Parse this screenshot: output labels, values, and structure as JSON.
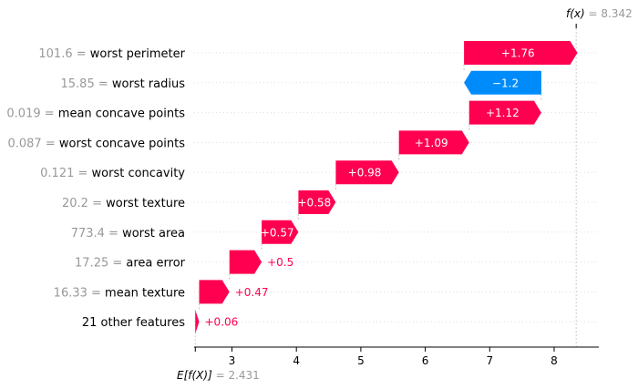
{
  "chart_data": {
    "type": "waterfall",
    "base_value": 2.431,
    "base_label": "E[f(X)]",
    "output_value": 8.342,
    "output_label": "f(x)",
    "xlim": [
      2.42,
      9.0
    ],
    "xticks": [
      3,
      4,
      5,
      6,
      7,
      8
    ],
    "features": [
      {
        "value": "101.6",
        "name": "worst perimeter",
        "shap": 1.76,
        "label": "+1.76"
      },
      {
        "value": "15.85",
        "name": "worst radius",
        "shap": -1.2,
        "label": "−1.2"
      },
      {
        "value": "0.019",
        "name": "mean concave points",
        "shap": 1.12,
        "label": "+1.12"
      },
      {
        "value": "0.087",
        "name": "worst concave points",
        "shap": 1.09,
        "label": "+1.09"
      },
      {
        "value": "0.121",
        "name": "worst concavity",
        "shap": 0.98,
        "label": "+0.98"
      },
      {
        "value": "20.2",
        "name": "worst texture",
        "shap": 0.58,
        "label": "+0.58"
      },
      {
        "value": "773.4",
        "name": "worst area",
        "shap": 0.57,
        "label": "+0.57"
      },
      {
        "value": "17.25",
        "name": "area error",
        "shap": 0.5,
        "label": "+0.5"
      },
      {
        "value": "16.33",
        "name": "mean texture",
        "shap": 0.47,
        "label": "+0.47"
      },
      {
        "value": "",
        "name": "21 other features",
        "shap": 0.06,
        "label": "+0.06"
      }
    ],
    "colors": {
      "positive": "#ff0051",
      "negative": "#008bfb",
      "muted": "#999999"
    }
  }
}
